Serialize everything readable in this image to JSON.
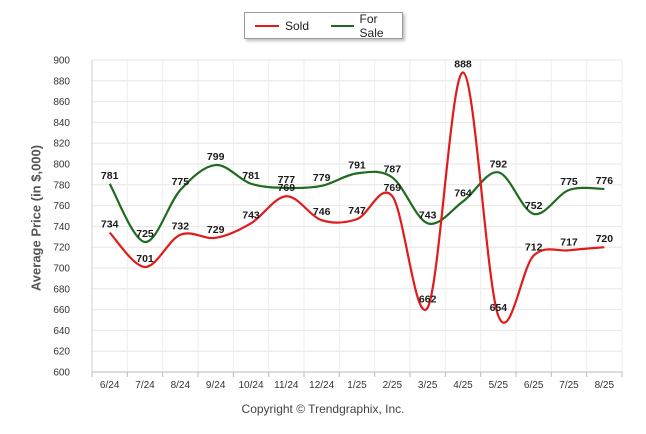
{
  "chart_data": {
    "type": "line",
    "title": "",
    "xlabel": "",
    "ylabel": "Average Price (in $,000)",
    "ylim": [
      600,
      900
    ],
    "ytick_step": 20,
    "grid": true,
    "legend_position": "top-center",
    "categories": [
      "6/24",
      "7/24",
      "8/24",
      "9/24",
      "10/24",
      "11/24",
      "12/24",
      "1/25",
      "2/25",
      "3/25",
      "4/25",
      "5/25",
      "6/25",
      "7/25",
      "8/25"
    ],
    "series": [
      {
        "name": "Sold",
        "color": "#e11b1b",
        "values": [
          734,
          701,
          732,
          729,
          743,
          769,
          746,
          747,
          769,
          662,
          888,
          654,
          712,
          717,
          720
        ]
      },
      {
        "name": "For Sale",
        "color": "#1f6b1f",
        "values": [
          781,
          725,
          775,
          799,
          781,
          777,
          779,
          791,
          787,
          743,
          764,
          792,
          752,
          775,
          776
        ]
      }
    ]
  },
  "footer": {
    "copyright": "Copyright © Trendgraphix, Inc."
  }
}
